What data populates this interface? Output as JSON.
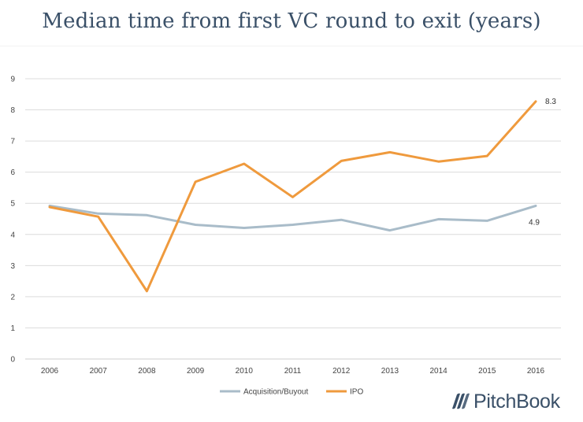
{
  "chart_data": {
    "type": "line",
    "title": "Median time from first VC round to exit (years)",
    "xlabel": "",
    "ylabel": "",
    "categories": [
      "2006",
      "2007",
      "2008",
      "2009",
      "2010",
      "2011",
      "2012",
      "2013",
      "2014",
      "2015",
      "2016"
    ],
    "y_ticks": [
      "0",
      "1",
      "2",
      "3",
      "4",
      "5",
      "6",
      "7",
      "8",
      "9"
    ],
    "ylim": [
      0,
      9
    ],
    "grid": true,
    "legend_position": "bottom",
    "series": [
      {
        "name": "Acquisition/Buyout",
        "color": "#a9bcc9",
        "values": [
          4.92,
          4.67,
          4.62,
          4.31,
          4.21,
          4.31,
          4.47,
          4.13,
          4.49,
          4.44,
          4.92
        ],
        "end_label": "4.9"
      },
      {
        "name": "IPO",
        "color": "#ef9a3d",
        "values": [
          4.88,
          4.57,
          2.18,
          5.69,
          6.27,
          5.2,
          6.36,
          6.64,
          6.34,
          6.52,
          8.27
        ],
        "end_label": "8.3"
      }
    ]
  },
  "brand": {
    "name": "PitchBook",
    "color": "#3a5068"
  },
  "colors": {
    "grid": "#dcdcdc",
    "axis_text": "#444444"
  }
}
